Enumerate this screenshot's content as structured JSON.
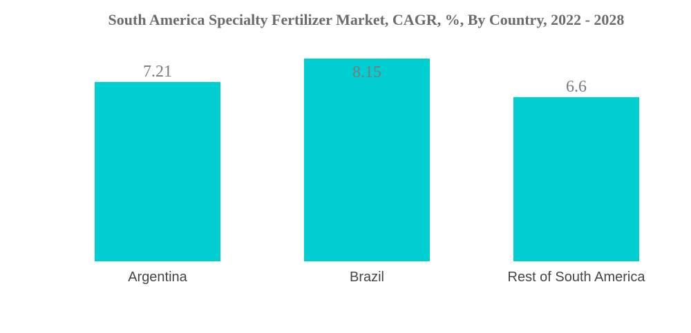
{
  "chart_data": {
    "type": "bar",
    "title": "South America Specialty Fertilizer Market, CAGR, %, By Country, 2022 - 2028",
    "xlabel": "",
    "ylabel": "",
    "categories": [
      "Argentina",
      "Brazil",
      "Rest of South America"
    ],
    "values": [
      7.21,
      8.15,
      6.6
    ],
    "value_labels": [
      "7.21",
      "8.15",
      "6.6"
    ],
    "ylim": [
      0,
      8.15
    ],
    "grid": false,
    "legend": "none",
    "colors": {
      "bar": "#00CED1",
      "value_label": "#7a7a7a",
      "category_label": "#444444",
      "title": "#6b6b6b"
    }
  }
}
